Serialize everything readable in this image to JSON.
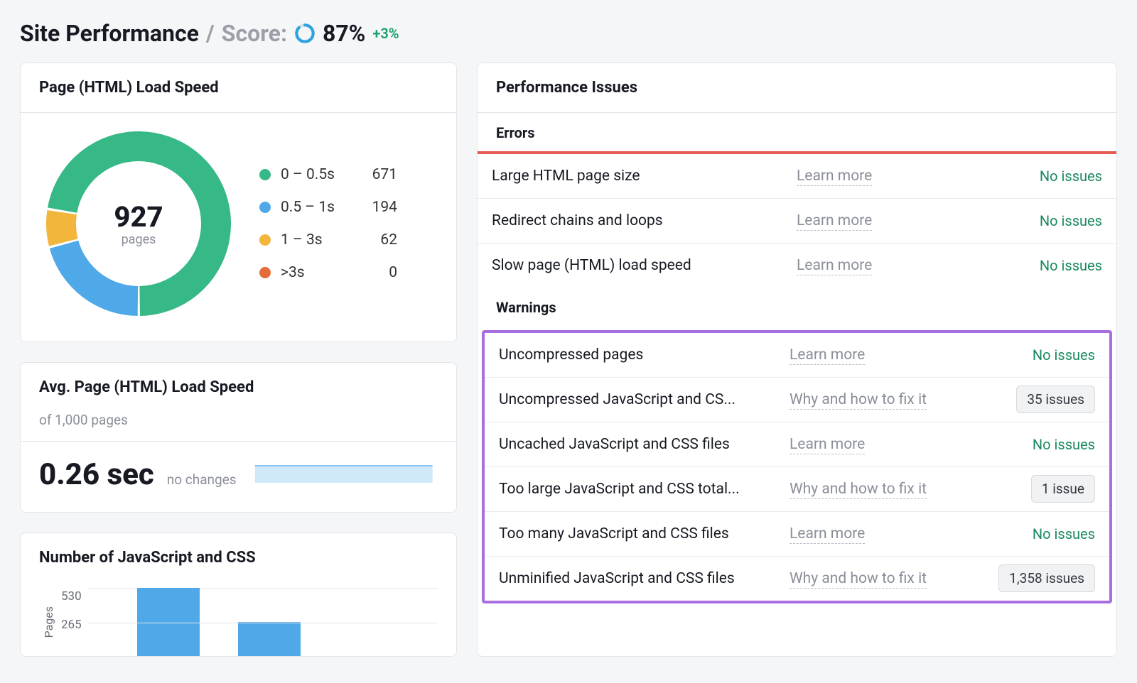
{
  "header": {
    "title": "Site Performance",
    "sep": " / ",
    "score_label": "Score:",
    "score_value": "87%",
    "score_delta": "+3%",
    "ring_color": "#2fa3e0",
    "ring_bg": "#d7e0e6",
    "ring_pct": 87
  },
  "load_speed": {
    "title": "Page (HTML) Load Speed",
    "type": "donut",
    "center_value": "927",
    "center_label": "pages",
    "legend": [
      {
        "label": "0 – 0.5s",
        "value": "671",
        "color": "#37b887"
      },
      {
        "label": "0.5 – 1s",
        "value": "194",
        "color": "#4fa9e8"
      },
      {
        "label": "1 – 3s",
        "value": "62",
        "color": "#f2b63d"
      },
      {
        "label": ">3s",
        "value": "0",
        "color": "#e46b3a"
      }
    ],
    "total": 927,
    "donut_thickness": 42
  },
  "avg_speed": {
    "title": "Avg. Page (HTML) Load Speed",
    "subtitle": "of 1,000 pages",
    "value": "0.26 sec",
    "change": "no changes",
    "spark_color": "#cfe9fb",
    "spark_border": "#8bc4ef"
  },
  "js_css": {
    "title": "Number of JavaScript and CSS",
    "type": "bar",
    "y_label": "Pages",
    "y_ticks": [
      "530",
      "265"
    ],
    "y_max": 530,
    "bars": [
      530,
      265
    ],
    "bar_color": "#4fa9e8"
  },
  "issues": {
    "title": "Performance Issues",
    "errors_label": "Errors",
    "warnings_label": "Warnings",
    "errors": [
      {
        "name": "Large HTML page size",
        "link": "Learn more",
        "result": "No issues",
        "has_count": false
      },
      {
        "name": "Redirect chains and loops",
        "link": "Learn more",
        "result": "No issues",
        "has_count": false
      },
      {
        "name": "Slow page (HTML) load speed",
        "link": "Learn more",
        "result": "No issues",
        "has_count": false
      }
    ],
    "warnings": [
      {
        "name": "Uncompressed pages",
        "link": "Learn more",
        "result": "No issues",
        "has_count": false
      },
      {
        "name": "Uncompressed JavaScript and CS...",
        "link": "Why and how to fix it",
        "result": "35 issues",
        "has_count": true
      },
      {
        "name": "Uncached JavaScript and CSS files",
        "link": "Learn more",
        "result": "No issues",
        "has_count": false
      },
      {
        "name": "Too large JavaScript and CSS total...",
        "link": "Why and how to fix it",
        "result": "1 issue",
        "has_count": true
      },
      {
        "name": "Too many JavaScript and CSS files",
        "link": "Learn more",
        "result": "No issues",
        "has_count": false
      },
      {
        "name": "Unminified JavaScript and CSS files",
        "link": "Why and how to fix it",
        "result": "1,358 issues",
        "has_count": true
      }
    ],
    "highlight_color": "#a96ee0",
    "error_bar_color": "#e45a54",
    "noissue_color": "#1a8a5e"
  }
}
